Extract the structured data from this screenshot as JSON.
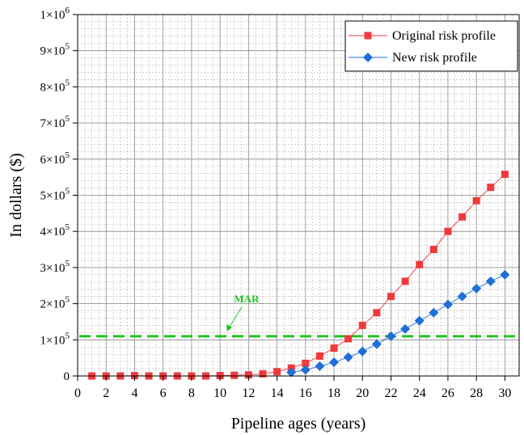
{
  "chart_data": {
    "type": "line",
    "title": "",
    "xlabel": "Pipeline ages (years)",
    "ylabel": "In dollars ($)",
    "xlim": [
      0,
      31
    ],
    "ylim": [
      0,
      1000000
    ],
    "x_ticks": [
      0,
      2,
      4,
      6,
      8,
      10,
      12,
      14,
      16,
      18,
      20,
      22,
      24,
      26,
      28,
      30
    ],
    "y_ticks": [
      {
        "value": 0,
        "mant": "0",
        "exp": ""
      },
      {
        "value": 100000,
        "mant": "1×10",
        "exp": "5"
      },
      {
        "value": 200000,
        "mant": "2×10",
        "exp": "5"
      },
      {
        "value": 300000,
        "mant": "3×10",
        "exp": "5"
      },
      {
        "value": 400000,
        "mant": "4×10",
        "exp": "5"
      },
      {
        "value": 500000,
        "mant": "5×10",
        "exp": "5"
      },
      {
        "value": 600000,
        "mant": "6×10",
        "exp": "5"
      },
      {
        "value": 700000,
        "mant": "7×10",
        "exp": "5"
      },
      {
        "value": 800000,
        "mant": "8×10",
        "exp": "5"
      },
      {
        "value": 900000,
        "mant": "9×10",
        "exp": "5"
      },
      {
        "value": 1000000,
        "mant": "1×10",
        "exp": "6"
      }
    ],
    "grid": true,
    "legend_position": "top-right",
    "series": [
      {
        "name": "Original risk profile",
        "color": "#f0393c",
        "marker": "square",
        "x": [
          1,
          2,
          3,
          4,
          5,
          6,
          7,
          8,
          9,
          10,
          11,
          12,
          13,
          14,
          15,
          16,
          17,
          18,
          19,
          20,
          21,
          22,
          23,
          24,
          25,
          26,
          27,
          28,
          29,
          30
        ],
        "values": [
          0,
          0,
          0,
          1000,
          0,
          0,
          0,
          0,
          0,
          1000,
          2000,
          3000,
          6000,
          12000,
          22000,
          35000,
          55000,
          77000,
          103000,
          140000,
          175000,
          220000,
          262000,
          308000,
          350000,
          400000,
          440000,
          485000,
          522000,
          558000
        ]
      },
      {
        "name": "New risk profile",
        "color": "#1f6fd6",
        "marker": "diamond",
        "x": [
          15,
          16,
          17,
          18,
          19,
          20,
          21,
          22,
          23,
          24,
          25,
          26,
          27,
          28,
          29,
          30
        ],
        "values": [
          10000,
          17000,
          27000,
          38000,
          52000,
          68000,
          88000,
          110000,
          130000,
          153000,
          175000,
          198000,
          220000,
          242000,
          262000,
          280000
        ]
      }
    ],
    "reference_line": {
      "label": "MAR",
      "value": 110000,
      "color": "#22c322",
      "annotation_x": 10.5
    }
  }
}
